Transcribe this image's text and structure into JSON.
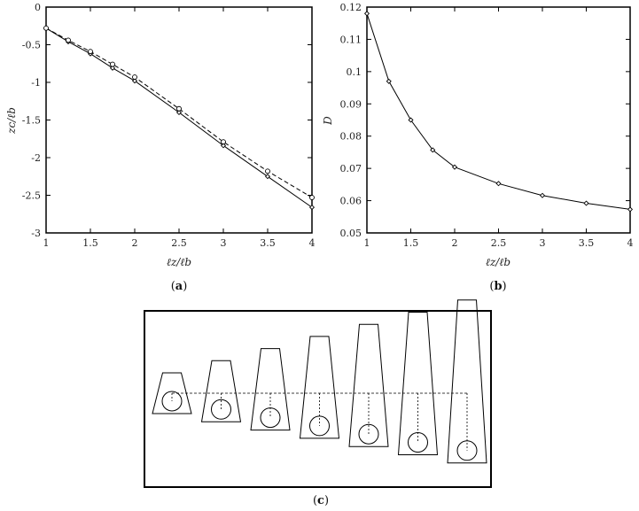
{
  "chart_data": [
    {
      "type": "line",
      "caption_letter": "a",
      "xlabel": "ℓz/ℓb",
      "ylabel": "zc/ℓb",
      "xlim": [
        1,
        4
      ],
      "ylim": [
        -3,
        0
      ],
      "xticks": [
        "1",
        "1.5",
        "2",
        "2.5",
        "3",
        "3.5",
        "4"
      ],
      "yticks": [
        "0",
        "-0.5",
        "-1",
        "-1.5",
        "-2",
        "-2.5",
        "-3"
      ],
      "series": [
        {
          "style": "solid",
          "marker": "diamond",
          "x": [
            1,
            1.25,
            1.5,
            1.75,
            2,
            2.5,
            3,
            3.5,
            4
          ],
          "y": [
            -0.28,
            -0.46,
            -0.62,
            -0.81,
            -0.98,
            -1.4,
            -1.84,
            -2.25,
            -2.66
          ]
        },
        {
          "style": "dashed",
          "marker": "circle",
          "x": [
            1,
            1.25,
            1.5,
            1.75,
            2,
            2.5,
            3,
            3.5,
            4
          ],
          "y": [
            -0.28,
            -0.44,
            -0.59,
            -0.76,
            -0.93,
            -1.35,
            -1.79,
            -2.18,
            -2.53
          ]
        }
      ]
    },
    {
      "type": "line",
      "caption_letter": "b",
      "xlabel": "ℓz/ℓb",
      "ylabel": "D",
      "xlim": [
        1,
        4
      ],
      "ylim": [
        0.05,
        0.12
      ],
      "xticks": [
        "1",
        "1.5",
        "2",
        "2.5",
        "3",
        "3.5",
        "4"
      ],
      "yticks": [
        "0.12",
        "0.11",
        "0.1",
        "0.09",
        "0.08",
        "0.07",
        "0.06",
        "0.05"
      ],
      "series": [
        {
          "style": "solid",
          "marker": "diamond",
          "x": [
            1,
            1.25,
            1.5,
            1.75,
            2,
            2.5,
            3,
            3.5,
            4
          ],
          "y": [
            0.118,
            0.097,
            0.085,
            0.0757,
            0.0704,
            0.0653,
            0.0616,
            0.0592,
            0.0573
          ]
        }
      ]
    }
  ],
  "diagram": {
    "caption_letter": "c",
    "shapes": [
      {
        "ratio": 1.0
      },
      {
        "ratio": 1.5
      },
      {
        "ratio": 2.0
      },
      {
        "ratio": 2.5
      },
      {
        "ratio": 3.0
      },
      {
        "ratio": 3.5
      },
      {
        "ratio": 4.0
      }
    ]
  }
}
